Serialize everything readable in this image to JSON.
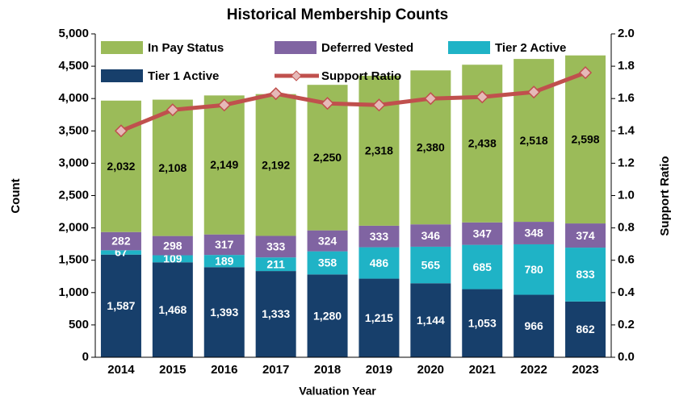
{
  "chart_data": {
    "type": "bar",
    "title": "Historical Membership Counts",
    "x_label": "Valuation Year",
    "y_label": "Count",
    "y2_label": "Support Ratio",
    "categories": [
      "2014",
      "2015",
      "2016",
      "2017",
      "2018",
      "2019",
      "2020",
      "2021",
      "2022",
      "2023"
    ],
    "stacked": true,
    "series": [
      {
        "name": "In Pay Status",
        "color": "#9bbb59",
        "values": [
          2032,
          2108,
          2149,
          2192,
          2250,
          2318,
          2380,
          2438,
          2518,
          2598
        ],
        "value_labels": [
          "2,032",
          "2,108",
          "2,149",
          "2,192",
          "2,250",
          "2,318",
          "2,380",
          "2,438",
          "2,518",
          "2,598"
        ]
      },
      {
        "name": "Deferred Vested",
        "color": "#8064a2",
        "values": [
          282,
          298,
          317,
          333,
          324,
          333,
          346,
          347,
          348,
          374
        ],
        "value_labels": [
          "282",
          "298",
          "317",
          "333",
          "324",
          "333",
          "346",
          "347",
          "348",
          "374"
        ]
      },
      {
        "name": "Tier 2 Active",
        "color": "#1fb3c6",
        "values": [
          67,
          109,
          189,
          211,
          358,
          486,
          565,
          685,
          780,
          833
        ],
        "value_labels": [
          "67",
          "109",
          "189",
          "211",
          "358",
          "486",
          "565",
          "685",
          "780",
          "833"
        ]
      },
      {
        "name": "Tier 1 Active",
        "color": "#173f6b",
        "values": [
          1587,
          1468,
          1393,
          1333,
          1280,
          1215,
          1144,
          1053,
          966,
          862
        ],
        "value_labels": [
          "1,587",
          "1,468",
          "1,393",
          "1,333",
          "1,280",
          "1,215",
          "1,144",
          "1,053",
          "966",
          "862"
        ]
      },
      {
        "name": "Support Ratio",
        "type": "line",
        "axis": "y2",
        "color": "#c0504d",
        "marker_color": "#e6b9b8",
        "values": [
          1.4,
          1.53,
          1.56,
          1.63,
          1.57,
          1.56,
          1.6,
          1.61,
          1.64,
          1.76
        ]
      }
    ],
    "ylim": [
      0,
      5000
    ],
    "yticks": [
      0,
      500,
      {
        "value": 1000,
        "label": "1,000"
      },
      {
        "value": 1500,
        "label": "1,500"
      },
      {
        "value": 2000,
        "label": "2,000"
      },
      {
        "value": 2500,
        "label": "2,500"
      },
      {
        "value": 3000,
        "label": "3,000"
      },
      {
        "value": 3500,
        "label": "3,500"
      },
      {
        "value": 4000,
        "label": "4,000"
      },
      {
        "value": 4500,
        "label": "4,500"
      },
      {
        "value": 5000,
        "label": "5,000"
      }
    ],
    "y2lim": [
      0,
      2
    ],
    "y2ticks": [
      {
        "value": 0,
        "label": "0.0"
      },
      0.2,
      0.4,
      0.6,
      0.8,
      {
        "value": 1,
        "label": "1.0"
      },
      1.2,
      1.4,
      1.6,
      1.8,
      {
        "value": 2,
        "label": "2.0"
      }
    ]
  }
}
